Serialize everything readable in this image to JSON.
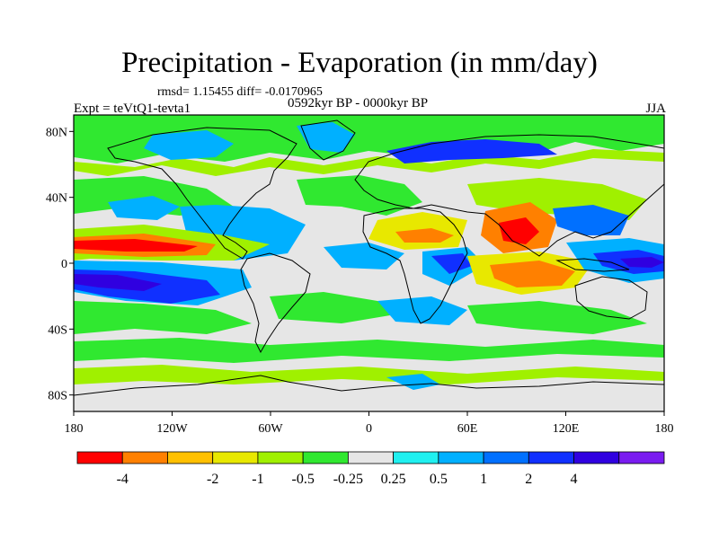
{
  "plot": {
    "title": "Precipitation - Evaporation (in mm/day)",
    "stats": "rmsd= 1.15455 diff= -0.0170965",
    "expt": "Expt = teVtQ1-tevta1",
    "period": "0592kyr BP - 0000kyr BP",
    "season": "JJA"
  },
  "axes": {
    "lon_ticks": [
      "180",
      "120W",
      "60W",
      "0",
      "60E",
      "120E",
      "180"
    ],
    "lat_ticks": [
      "80N",
      "40N",
      "0",
      "40S",
      "80S"
    ]
  },
  "colorbar": {
    "colors": [
      "#ff0000",
      "#ff8000",
      "#ffc000",
      "#e8e800",
      "#a0f000",
      "#30e830",
      "#e6e6e6",
      "#20f0f0",
      "#00b0ff",
      "#0070ff",
      "#1030ff",
      "#3000e0",
      "#7a1cf0"
    ],
    "labels": [
      "-4",
      "-2",
      "-1",
      "-0.5",
      "-0.25",
      "0.25",
      "0.5",
      "1",
      "2",
      "4"
    ],
    "label_after_box": [
      1,
      3,
      4,
      5,
      6,
      7,
      8,
      9,
      10,
      11
    ]
  },
  "field_colors": {
    "neutral": "#e6e6e6",
    "green": "#30e830",
    "lime": "#a0f000",
    "yellow": "#e8e800",
    "orange": "#ff8000",
    "red": "#ff0000",
    "cyan": "#20f0f0",
    "sky": "#00b0ff",
    "blue": "#0070ff",
    "navy": "#1030ff",
    "purple": "#3000e0"
  }
}
